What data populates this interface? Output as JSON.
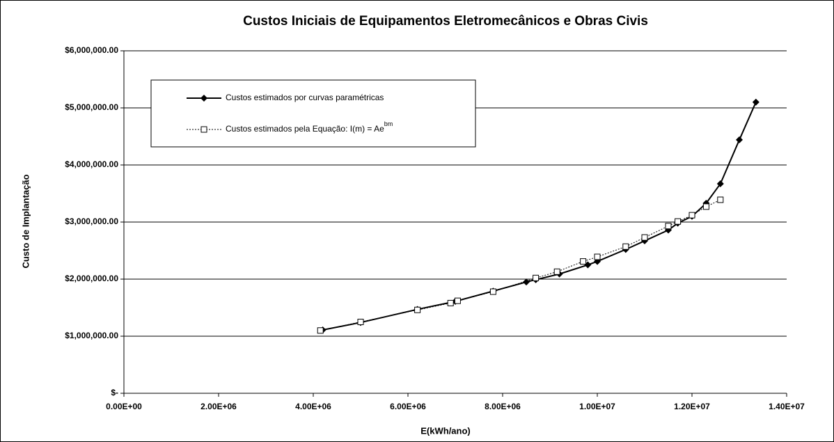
{
  "chart_data": {
    "type": "line",
    "title": "Custos Iniciais de Equipamentos Eletromecânicos e Obras Civis",
    "xlabel": "E(kWh/ano)",
    "ylabel": "Custo de Implantação",
    "xlim": [
      0,
      14000000
    ],
    "xticks": [
      {
        "value": 0,
        "label": "0.00E+00"
      },
      {
        "value": 2000000,
        "label": "2.00E+06"
      },
      {
        "value": 4000000,
        "label": "4.00E+06"
      },
      {
        "value": 6000000,
        "label": "6.00E+06"
      },
      {
        "value": 8000000,
        "label": "8.00E+06"
      },
      {
        "value": 10000000,
        "label": "1.00E+07"
      },
      {
        "value": 12000000,
        "label": "1.20E+07"
      },
      {
        "value": 14000000,
        "label": "1.40E+07"
      }
    ],
    "ylim": [
      0,
      6000000
    ],
    "yticks": [
      {
        "value": 0,
        "label": "$-"
      },
      {
        "value": 1000000,
        "label": "$1,000,000.00"
      },
      {
        "value": 2000000,
        "label": "$2,000,000.00"
      },
      {
        "value": 3000000,
        "label": "$3,000,000.00"
      },
      {
        "value": 4000000,
        "label": "$4,000,000.00"
      },
      {
        "value": 5000000,
        "label": "$5,000,000.00"
      },
      {
        "value": 6000000,
        "label": "$6,000,000.00"
      }
    ],
    "grid": true,
    "series": [
      {
        "name": "Custos estimados por curvas paramétricas",
        "color": "#000000",
        "line": "solid",
        "marker": "diamond",
        "x": [
          4200000,
          5000000,
          6200000,
          7000000,
          7800000,
          8500000,
          8700000,
          9200000,
          9800000,
          10000000,
          10600000,
          11000000,
          11500000,
          11700000,
          12000000,
          12300000,
          12600000,
          13000000,
          13350000
        ],
        "values": [
          1110000,
          1240000,
          1470000,
          1610000,
          1790000,
          1950000,
          1990000,
          2090000,
          2250000,
          2310000,
          2520000,
          2670000,
          2860000,
          2980000,
          3100000,
          3330000,
          3670000,
          4440000,
          5100000
        ]
      },
      {
        "name": "Custos estimados pela Equação:  I(m) = Ae",
        "name_superscript": "bm",
        "color": "#000000",
        "line": "dotted",
        "marker": "square",
        "x": [
          4150000,
          5000000,
          6200000,
          6900000,
          7050000,
          7800000,
          8700000,
          9150000,
          9700000,
          10000000,
          10600000,
          11000000,
          11500000,
          11700000,
          12000000,
          12300000,
          12600000
        ],
        "values": [
          1100000,
          1250000,
          1460000,
          1580000,
          1620000,
          1780000,
          2020000,
          2130000,
          2310000,
          2390000,
          2570000,
          2730000,
          2930000,
          3010000,
          3120000,
          3270000,
          3390000
        ]
      }
    ]
  }
}
